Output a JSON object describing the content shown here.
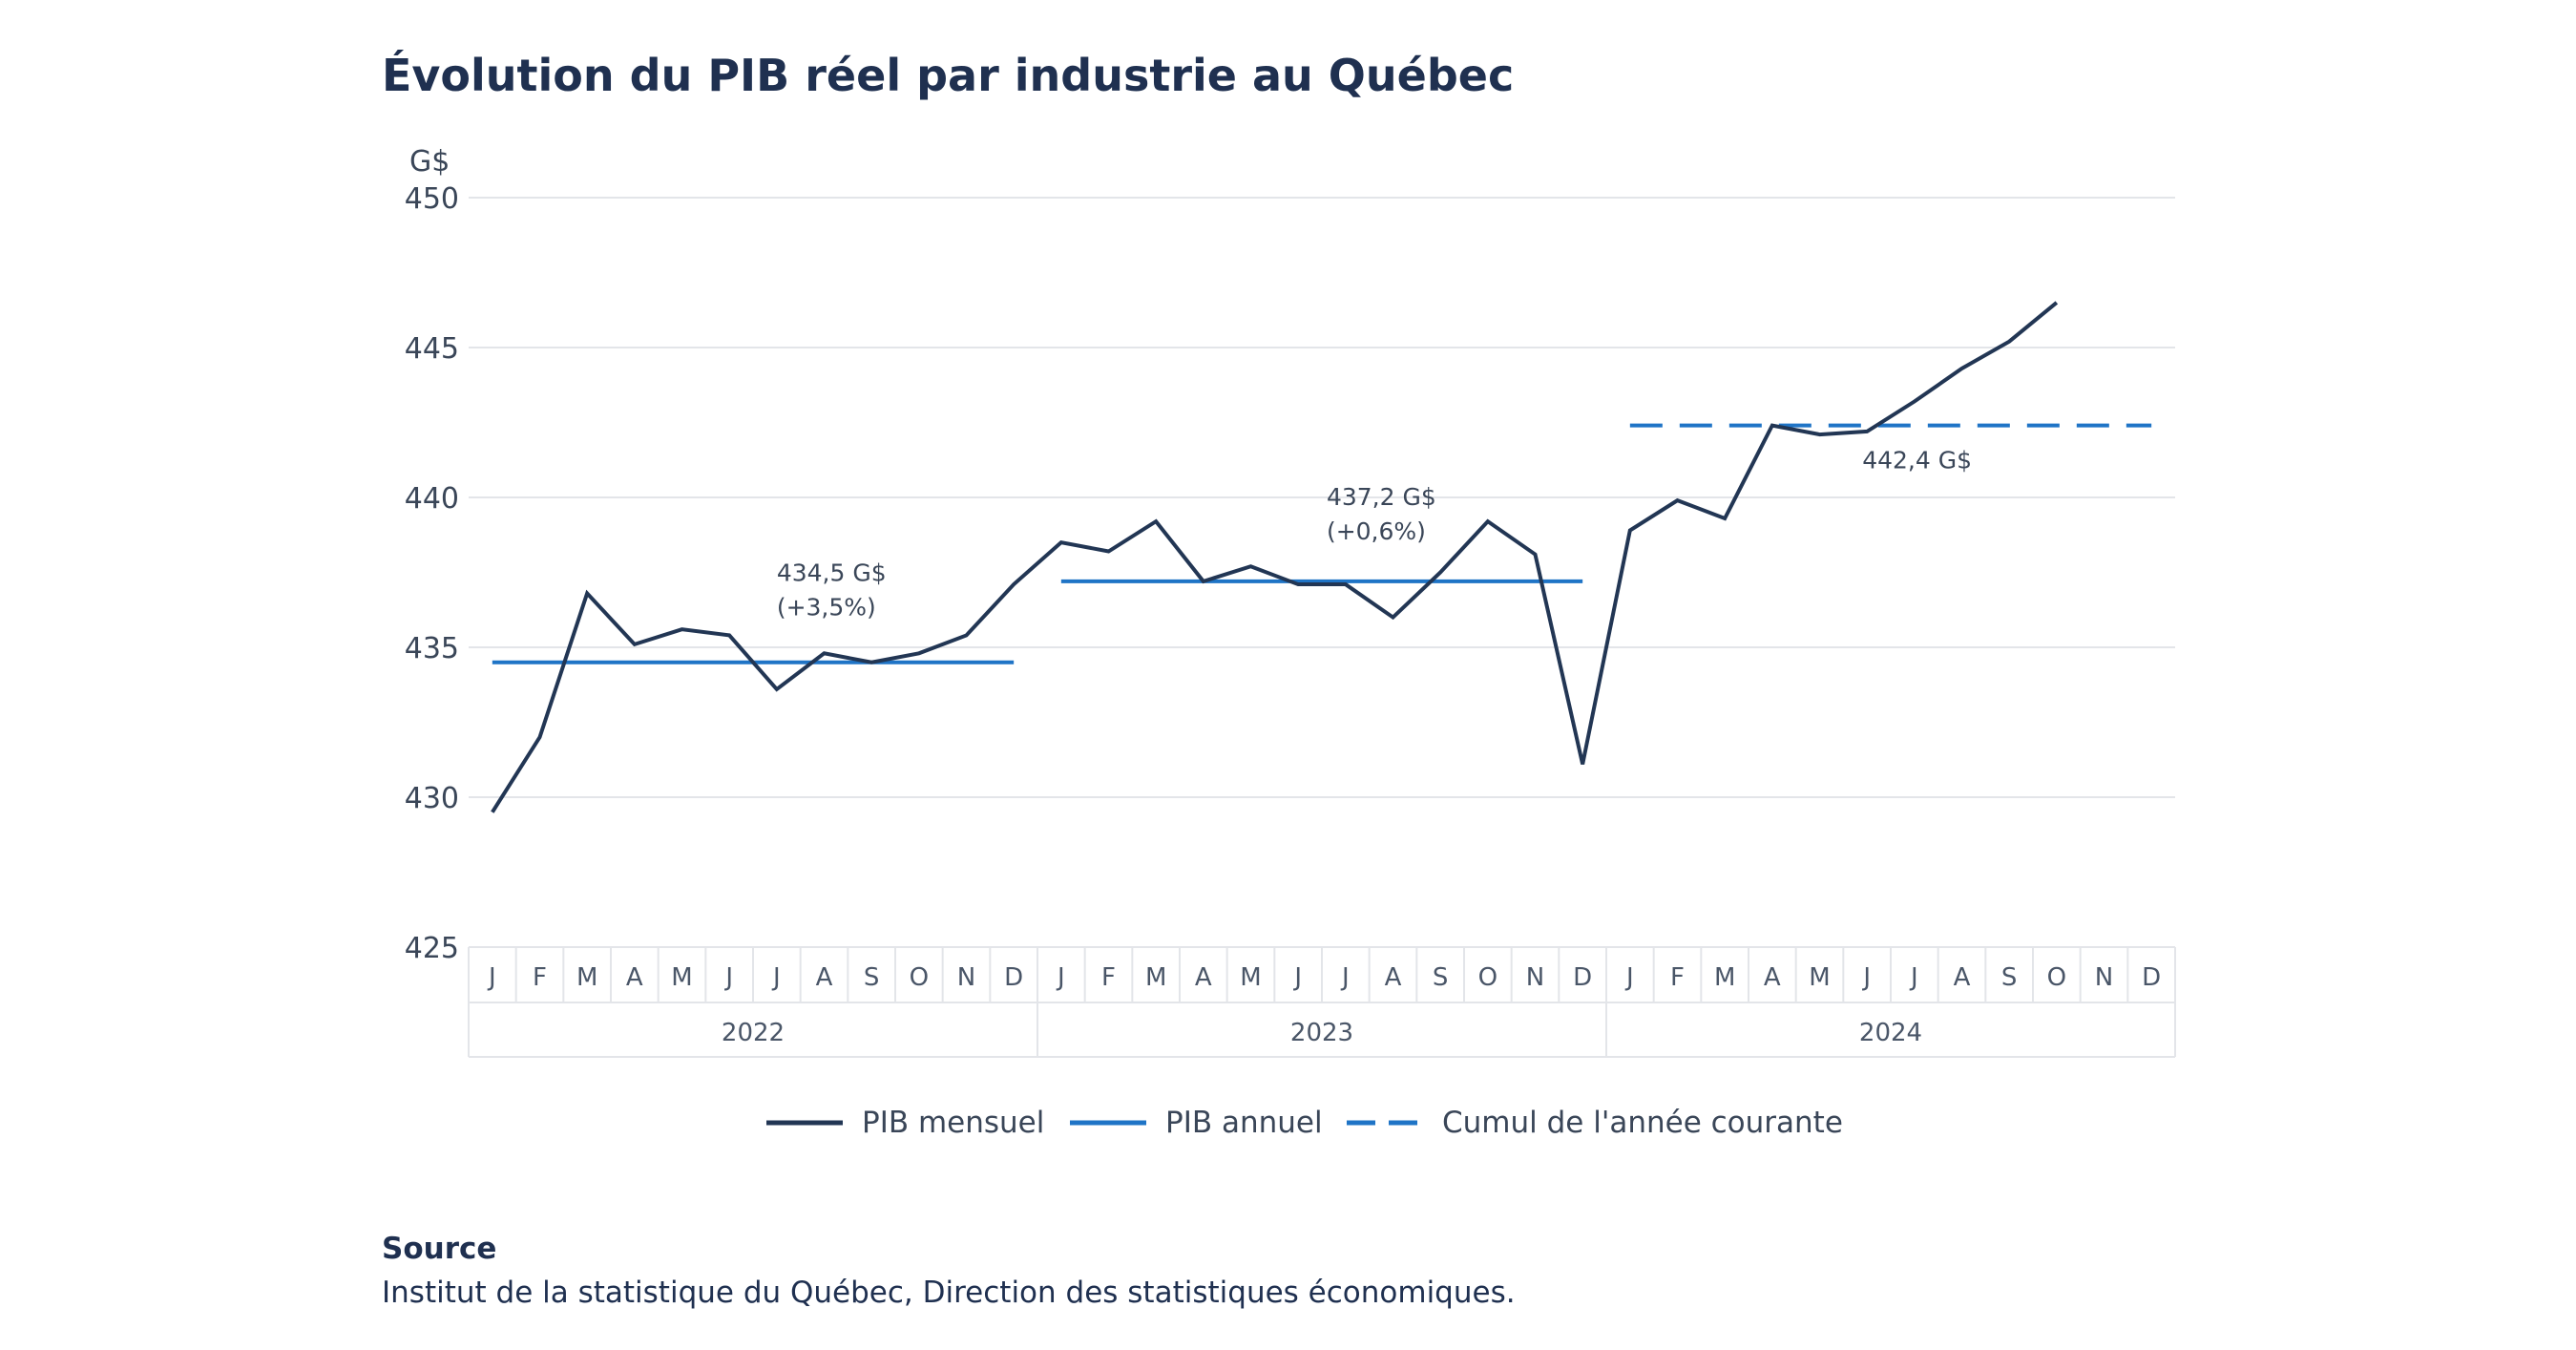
{
  "chart_data": {
    "type": "line",
    "title": "Évolution du PIB réel par industrie au Québec",
    "ylabel": "G$",
    "ylim": [
      425,
      450
    ],
    "yticks": [
      425,
      430,
      435,
      440,
      445,
      450
    ],
    "grid": true,
    "legend_placement": "bottom",
    "months": [
      "J",
      "F",
      "M",
      "A",
      "M",
      "J",
      "J",
      "A",
      "S",
      "O",
      "N",
      "D"
    ],
    "years": [
      "2022",
      "2023",
      "2024"
    ],
    "colors": {
      "monthly": "#223654",
      "annual": "#1f74c6"
    },
    "series": [
      {
        "name": "PIB mensuel",
        "style": "solid",
        "values": [
          429.5,
          432.0,
          436.8,
          435.1,
          435.6,
          435.4,
          433.6,
          434.8,
          434.5,
          434.8,
          435.4,
          437.1,
          438.5,
          438.2,
          439.2,
          437.2,
          437.7,
          437.1,
          437.1,
          436.0,
          437.5,
          439.2,
          438.1,
          431.1,
          438.9,
          439.9,
          439.3,
          442.4,
          442.1,
          442.2,
          443.2,
          444.3,
          445.2,
          446.5
        ]
      },
      {
        "name": "PIB annuel",
        "style": "solid",
        "segments": [
          {
            "year": "2022",
            "value": 434.5
          },
          {
            "year": "2023",
            "value": 437.2
          }
        ]
      },
      {
        "name": "Cumul de l'année courante",
        "style": "dashed",
        "segments": [
          {
            "year": "2024",
            "value": 442.4
          }
        ]
      }
    ],
    "annotations": [
      {
        "lines": [
          "434,5 G$",
          "(+3,5%)"
        ]
      },
      {
        "lines": [
          "437,2 G$",
          "(+0,6%)"
        ]
      },
      {
        "lines": [
          "442,4 G$"
        ]
      }
    ]
  },
  "source": {
    "heading": "Source",
    "text": "Institut de la statistique du Québec, Direction des statistiques économiques."
  }
}
